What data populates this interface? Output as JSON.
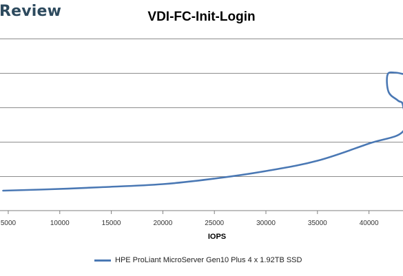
{
  "brand": {
    "text": "Review"
  },
  "chart_data": {
    "type": "line",
    "title": "VDI-FC-Init-Login",
    "xlabel": "IOPS",
    "ylabel": "",
    "xlim": [
      4200,
      43300
    ],
    "ylim": [
      0,
      5
    ],
    "x_ticks": [
      5000,
      10000,
      15000,
      20000,
      25000,
      30000,
      35000,
      40000
    ],
    "y_gridlines": [
      1,
      2,
      3,
      4,
      5
    ],
    "grid": true,
    "legend": "bottom",
    "series": [
      {
        "name": "HPE ProLiant MicroServer Gen10 Plus 4 x 1.92TB SSD",
        "color": "#4a78b4",
        "points": [
          [
            4500,
            0.58
          ],
          [
            9000,
            0.62
          ],
          [
            14000,
            0.68
          ],
          [
            20000,
            0.77
          ],
          [
            25000,
            0.93
          ],
          [
            30000,
            1.15
          ],
          [
            35000,
            1.45
          ],
          [
            40000,
            1.95
          ],
          [
            43300,
            2.3
          ],
          [
            43300,
            3.05
          ],
          [
            42800,
            3.2
          ],
          [
            41900,
            3.45
          ],
          [
            41800,
            3.95
          ],
          [
            42500,
            4.01
          ],
          [
            43300,
            3.97
          ]
        ]
      }
    ]
  }
}
